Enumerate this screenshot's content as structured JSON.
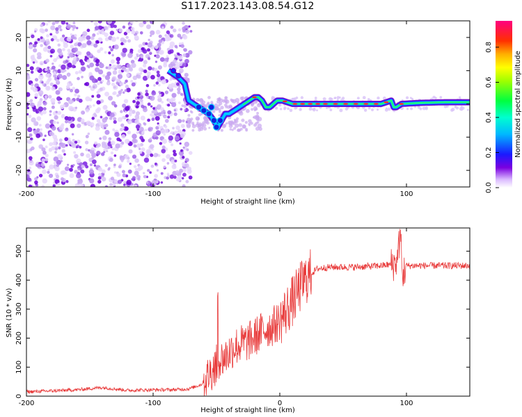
{
  "title": "S117.2023.143.08.54.G12",
  "colors": {
    "snr_line": "#e83a3a",
    "spectrum_core": [
      "#6a00c8",
      "#2a20ff",
      "#00c8ff",
      "#00ff60",
      "#ffff00",
      "#ff2020"
    ],
    "scatter_light": "#c9a8f0",
    "scatter_dark": "#7a1ee0"
  },
  "chart_data": [
    {
      "type": "heatmap",
      "xlabel": "Height of straight line (km)",
      "ylabel": "Frequency (Hz)",
      "xlim": [
        -200,
        150
      ],
      "ylim": [
        -25,
        25
      ],
      "x_ticks": [
        -200,
        -100,
        0,
        100
      ],
      "y_ticks": [
        -20,
        -10,
        0,
        10,
        20
      ],
      "grid": false,
      "description": "Noisy scattered spectrum below about -72 km; coherent signal line from about -72 km upward",
      "noise_region_x": [
        -200,
        -72
      ],
      "signal_track": {
        "x": [
          -88,
          -80,
          -75,
          -72,
          -68,
          -64,
          -60,
          -56,
          -52,
          -49,
          -46,
          -43,
          -40,
          -36,
          -32,
          -28,
          -24,
          -20,
          -17,
          -14,
          -11,
          -8,
          -5,
          -2,
          2,
          6,
          10,
          20,
          40,
          60,
          80,
          88,
          90,
          92,
          96,
          110,
          130,
          150
        ],
        "y": [
          10,
          8,
          6,
          1,
          0,
          -1,
          -2,
          -3,
          -5,
          -7,
          -5,
          -3,
          -3,
          -2,
          -1,
          0,
          1,
          2,
          2,
          1,
          -1,
          -1,
          0,
          1,
          1,
          0.5,
          0,
          0,
          0,
          0,
          0,
          1,
          -1,
          -1,
          0,
          0.3,
          0.5,
          0.5
        ]
      },
      "colorbar": {
        "label": "Normalized spectral amplitude",
        "range": [
          0.0,
          0.95
        ],
        "ticks": [
          0.0,
          0.2,
          0.4,
          0.6,
          0.8
        ],
        "tick_labels": [
          "0.0",
          "0.2",
          "0.4",
          "0.6",
          "0.8"
        ]
      }
    },
    {
      "type": "line",
      "xlabel": "Height of straight line (km)",
      "ylabel": "SNR (10 * v/v)",
      "xlim": [
        -200,
        150
      ],
      "ylim": [
        0,
        580
      ],
      "x_ticks": [
        -200,
        -100,
        0,
        100
      ],
      "y_ticks": [
        0,
        100,
        200,
        300,
        400,
        500
      ],
      "grid": false,
      "series": [
        {
          "x": [
            -200,
            -180,
            -160,
            -140,
            -120,
            -100,
            -85,
            -72,
            -62,
            -55,
            -48,
            -42,
            -36,
            -30,
            -24,
            -18,
            -12,
            -6,
            0,
            6,
            12,
            18,
            24,
            30,
            40,
            60,
            80,
            90,
            93,
            95,
            97,
            100,
            120,
            150
          ],
          "y": [
            15,
            18,
            22,
            30,
            20,
            22,
            22,
            25,
            40,
            80,
            120,
            140,
            170,
            180,
            190,
            210,
            230,
            240,
            260,
            300,
            340,
            390,
            420,
            440,
            445,
            445,
            450,
            455,
            470,
            560,
            420,
            450,
            450,
            450
          ]
        }
      ]
    }
  ]
}
